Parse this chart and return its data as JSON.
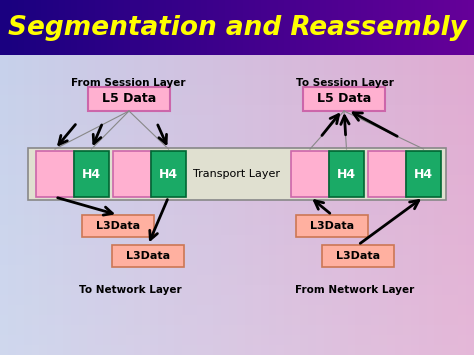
{
  "title": "Segmentation and Reassembly",
  "title_color": "#FFFF00",
  "transport_layer_label": "Transport Layer",
  "from_session_label": "From Session Layer",
  "to_session_label": "To Session Layer",
  "to_network_label": "To Network Layer",
  "from_network_label": "From Network Layer",
  "l5_data_label": "L5 Data",
  "h4_label": "H4",
  "l3data_label": "L3Data",
  "pink_color": "#FFB0D0",
  "green_color": "#1AAA66",
  "l3_color": "#FFB0A0",
  "transport_box_color": "#E0E0D0",
  "bg_left_color": "#C8D8EE",
  "bg_right_color": "#D0A8C8",
  "title_bg_left": "#1a0080",
  "title_bg_right": "#8800AA",
  "figw": 4.74,
  "figh": 3.55,
  "dpi": 100
}
